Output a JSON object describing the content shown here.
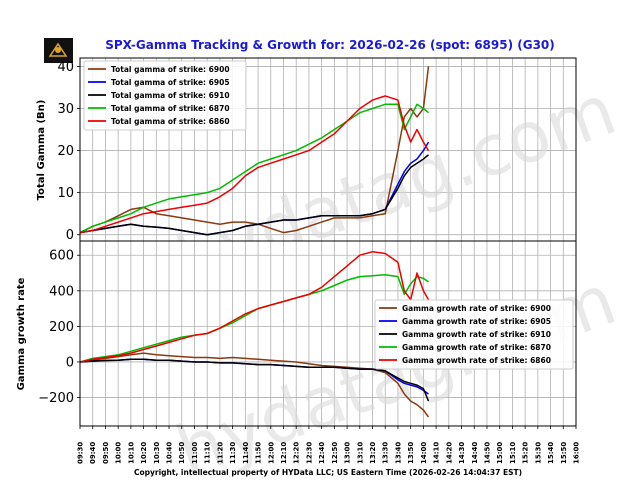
{
  "title": "SPX-Gamma Tracking & Growth for: 2026-02-26 (spot: 6895) (G30)",
  "logo_text": "HYData",
  "watermark": "hydatag.com",
  "footer": "Copyright, intellectual property of HYData LLC; US Eastern Time (2026-02-26 14:04:37 EST)",
  "chart_data": [
    {
      "type": "line",
      "ylabel": "Total Gamma (Bn)",
      "ylim": [
        -1.5,
        42
      ],
      "yticks": [
        0,
        10,
        20,
        30,
        40
      ],
      "grid": true,
      "legend_position": "top-left",
      "x_tick_labels": [
        "09:30",
        "09:40",
        "09:50",
        "10:00",
        "10:10",
        "10:20",
        "10:30",
        "10:40",
        "10:50",
        "11:00",
        "11:10",
        "11:20",
        "11:30",
        "11:40",
        "11:50",
        "12:00",
        "12:10",
        "12:20",
        "12:30",
        "12:40",
        "12:50",
        "13:00",
        "13:10",
        "13:20",
        "13:30",
        "13:40",
        "13:50",
        "14:00",
        "14:10",
        "14:20",
        "14:30",
        "14:40",
        "14:50",
        "15:00",
        "15:10",
        "15:20",
        "15:30",
        "15:40",
        "15:50",
        "16:00"
      ],
      "x": [
        "09:30",
        "09:40",
        "09:50",
        "10:00",
        "10:10",
        "10:20",
        "10:30",
        "10:40",
        "10:50",
        "11:00",
        "11:10",
        "11:20",
        "11:30",
        "11:40",
        "11:50",
        "12:00",
        "12:10",
        "12:20",
        "12:30",
        "12:40",
        "12:50",
        "13:00",
        "13:10",
        "13:20",
        "13:30",
        "13:40",
        "13:45",
        "13:50",
        "13:55",
        "14:00",
        "14:04"
      ],
      "series": [
        {
          "name": "Total gamma of strike: 6900",
          "color": "#8B3A0F",
          "values": [
            0.5,
            2,
            3,
            4.5,
            6,
            6.5,
            5,
            4.5,
            4,
            3.5,
            3,
            2.5,
            3,
            3,
            2.5,
            1.5,
            0.5,
            1,
            2,
            3,
            4,
            4,
            4,
            4.5,
            5,
            20,
            28,
            30,
            28,
            30,
            40
          ]
        },
        {
          "name": "Total gamma of strike: 6905",
          "color": "#0000ee",
          "values": [
            0.5,
            1,
            1.5,
            2,
            2.5,
            2,
            1.8,
            1.5,
            1,
            0.5,
            0,
            0.5,
            1,
            2,
            2.5,
            3,
            3.5,
            3.5,
            4,
            4.5,
            4.5,
            4.5,
            4.5,
            5,
            6,
            12,
            15,
            17,
            18,
            20,
            22
          ]
        },
        {
          "name": "Total gamma of strike: 6910",
          "color": "#000000",
          "values": [
            0.5,
            1,
            1.5,
            2,
            2.5,
            2,
            1.8,
            1.5,
            1,
            0.5,
            0,
            0.5,
            1,
            2,
            2.5,
            3,
            3.5,
            3.5,
            4,
            4.5,
            4.5,
            4.5,
            4.5,
            5,
            6,
            11,
            14,
            16,
            17,
            18,
            19
          ]
        },
        {
          "name": "Total gamma of strike: 6870",
          "color": "#00bb00",
          "values": [
            0.5,
            2,
            3,
            4,
            5,
            6.5,
            7.5,
            8.5,
            9,
            9.5,
            10,
            11,
            13,
            15,
            17,
            18,
            19,
            20,
            21.5,
            23,
            25,
            27,
            29,
            30,
            31,
            31,
            25,
            28,
            31,
            30,
            29
          ]
        },
        {
          "name": "Total gamma of strike: 6860",
          "color": "#ee0000",
          "values": [
            0.5,
            1,
            2,
            3,
            4,
            5,
            5.5,
            6,
            6.5,
            7,
            7.5,
            9,
            11,
            14,
            16,
            17,
            18,
            19,
            20,
            22,
            24,
            27,
            30,
            32,
            33,
            32,
            26,
            22,
            25,
            22,
            20
          ]
        }
      ]
    },
    {
      "type": "line",
      "ylabel": "Gamma growth rate",
      "ylim": [
        -360,
        680
      ],
      "yticks": [
        -200,
        0,
        200,
        400,
        600
      ],
      "grid": true,
      "legend_position": "center-right",
      "x_tick_labels": [
        "09:30",
        "09:40",
        "09:50",
        "10:00",
        "10:10",
        "10:20",
        "10:30",
        "10:40",
        "10:50",
        "11:00",
        "11:10",
        "11:20",
        "11:30",
        "11:40",
        "11:50",
        "12:00",
        "12:10",
        "12:20",
        "12:30",
        "12:40",
        "12:50",
        "13:00",
        "13:10",
        "13:20",
        "13:30",
        "13:40",
        "13:50",
        "14:00",
        "14:10",
        "14:20",
        "14:30",
        "14:40",
        "14:50",
        "15:00",
        "15:10",
        "15:20",
        "15:30",
        "15:40",
        "15:50",
        "16:00"
      ],
      "x": [
        "09:30",
        "09:40",
        "09:50",
        "10:00",
        "10:10",
        "10:20",
        "10:30",
        "10:40",
        "10:50",
        "11:00",
        "11:10",
        "11:20",
        "11:30",
        "11:40",
        "11:50",
        "12:00",
        "12:10",
        "12:20",
        "12:30",
        "12:40",
        "12:50",
        "13:00",
        "13:10",
        "13:20",
        "13:30",
        "13:40",
        "13:45",
        "13:50",
        "13:55",
        "14:00",
        "14:04"
      ],
      "series": [
        {
          "name": "Gamma growth rate of strike: 6900",
          "color": "#8B3A0F",
          "values": [
            0,
            10,
            20,
            30,
            40,
            50,
            40,
            35,
            30,
            25,
            25,
            20,
            25,
            20,
            15,
            10,
            5,
            0,
            -10,
            -20,
            -25,
            -30,
            -35,
            -40,
            -60,
            -120,
            -180,
            -220,
            -240,
            -270,
            -310
          ]
        },
        {
          "name": "Gamma growth rate of strike: 6905",
          "color": "#0000ee",
          "values": [
            0,
            5,
            8,
            10,
            15,
            15,
            10,
            10,
            5,
            0,
            0,
            -5,
            -5,
            -10,
            -15,
            -15,
            -20,
            -25,
            -30,
            -30,
            -30,
            -35,
            -40,
            -40,
            -50,
            -100,
            -120,
            -130,
            -140,
            -160,
            -180
          ]
        },
        {
          "name": "Gamma growth rate of strike: 6910",
          "color": "#000000",
          "values": [
            0,
            5,
            8,
            10,
            15,
            15,
            10,
            10,
            5,
            0,
            0,
            -5,
            -5,
            -10,
            -15,
            -15,
            -20,
            -25,
            -30,
            -30,
            -30,
            -35,
            -40,
            -40,
            -50,
            -90,
            -110,
            -120,
            -130,
            -150,
            -220
          ]
        },
        {
          "name": "Gamma growth rate of strike: 6870",
          "color": "#00bb00",
          "values": [
            0,
            20,
            30,
            40,
            60,
            80,
            100,
            120,
            140,
            150,
            160,
            190,
            220,
            260,
            300,
            320,
            340,
            360,
            380,
            400,
            430,
            460,
            480,
            485,
            490,
            480,
            380,
            440,
            480,
            470,
            450
          ]
        },
        {
          "name": "Gamma growth rate of strike: 6860",
          "color": "#ee0000",
          "values": [
            0,
            15,
            25,
            35,
            50,
            70,
            90,
            110,
            130,
            150,
            160,
            190,
            230,
            270,
            300,
            320,
            340,
            360,
            380,
            420,
            480,
            540,
            600,
            620,
            610,
            560,
            400,
            350,
            500,
            400,
            350
          ]
        }
      ]
    }
  ]
}
